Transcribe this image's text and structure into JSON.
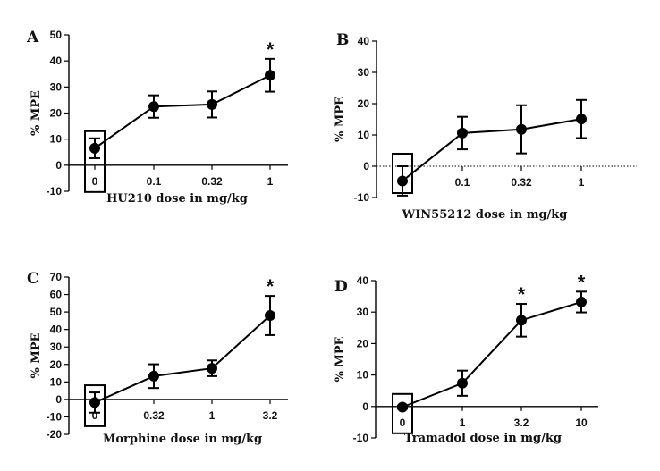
{
  "chart_data": [
    {
      "panel": "A",
      "type": "line",
      "ylabel": "% MPE",
      "xlabel": "HU210 dose in mg/kg",
      "categories": [
        "0",
        "0.1",
        "0.32",
        "1"
      ],
      "values": [
        6.5,
        22.5,
        23.3,
        34.5
      ],
      "error": [
        3.8,
        4.3,
        5.0,
        6.3
      ],
      "significant": [
        false,
        false,
        false,
        true
      ],
      "ylim": [
        -10,
        50
      ],
      "yticks": [
        -10,
        0,
        10,
        20,
        30,
        40,
        50
      ],
      "zero_line": "solid",
      "boxed_category": "0"
    },
    {
      "panel": "B",
      "type": "line",
      "ylabel": "% MPE",
      "xlabel": "WIN55212 dose in mg/kg",
      "categories": [
        "0",
        "0.1",
        "0.32",
        "1"
      ],
      "values": [
        -4.7,
        10.6,
        11.8,
        15.1
      ],
      "error": [
        4.7,
        5.2,
        7.7,
        6.1
      ],
      "significant": [
        false,
        false,
        false,
        false
      ],
      "ylim": [
        -10,
        40
      ],
      "yticks": [
        -10,
        0,
        10,
        20,
        30,
        40
      ],
      "zero_line": "dotted",
      "boxed_category": "0"
    },
    {
      "panel": "C",
      "type": "line",
      "ylabel": "% MPE",
      "xlabel": "Morphine dose in mg/kg",
      "categories": [
        "0",
        "0.32",
        "1",
        "3.2"
      ],
      "values": [
        -1.8,
        13.3,
        17.8,
        48.0
      ],
      "error": [
        5.8,
        6.8,
        4.5,
        11.2
      ],
      "significant": [
        false,
        false,
        false,
        true
      ],
      "ylim": [
        -20,
        70
      ],
      "yticks": [
        -20,
        -10,
        0,
        10,
        20,
        30,
        40,
        50,
        60,
        70
      ],
      "zero_line": "solid",
      "boxed_category": "0"
    },
    {
      "panel": "D",
      "type": "line",
      "ylabel": "% MPE",
      "xlabel": "Tramadol dose in mg/kg",
      "categories": [
        "0",
        "1",
        "3.2",
        "10"
      ],
      "values": [
        -0.2,
        7.4,
        27.4,
        33.2
      ],
      "error": [
        0.5,
        4.0,
        5.2,
        3.3
      ],
      "significant": [
        false,
        false,
        true,
        true
      ],
      "ylim": [
        -10,
        40
      ],
      "yticks": [
        -10,
        0,
        10,
        20,
        30,
        40
      ],
      "zero_line": "solid",
      "boxed_category": "0"
    }
  ],
  "star_label": "*"
}
